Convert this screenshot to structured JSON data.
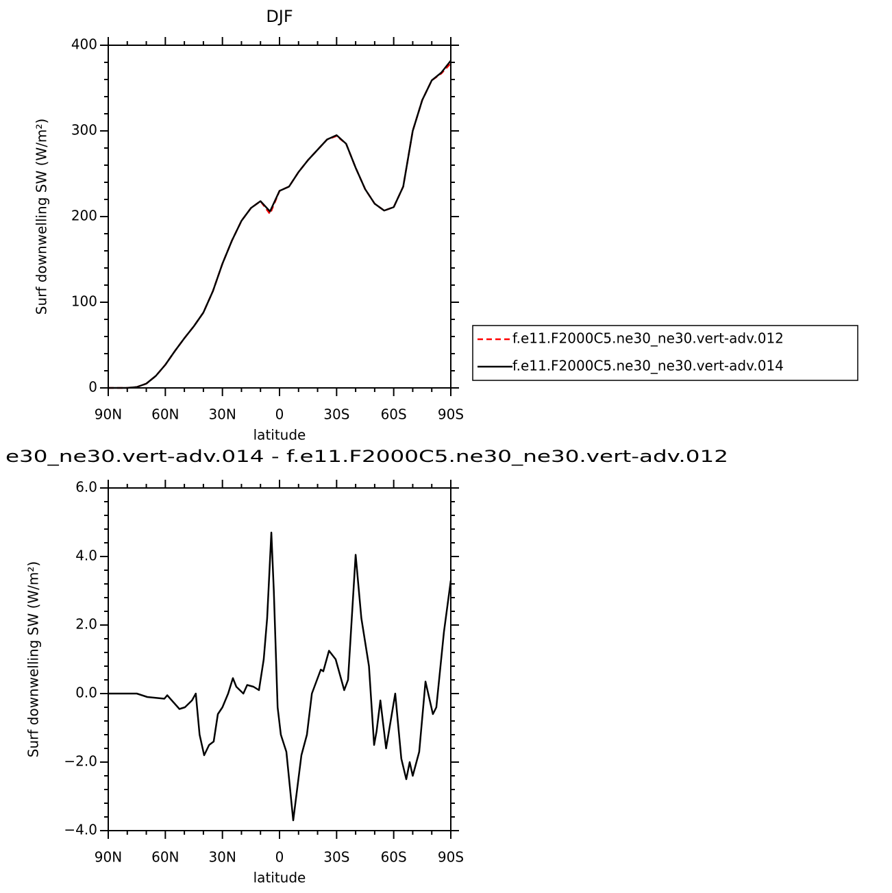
{
  "chart_data": [
    {
      "type": "line",
      "title": "DJF",
      "x_label": "latitude",
      "y_label": "Surf downwelling SW (W/m²)",
      "x": [
        90,
        85,
        80,
        75,
        70,
        65,
        60,
        55,
        50,
        45,
        40,
        35,
        30,
        25,
        20,
        15,
        10,
        5,
        0,
        -5,
        -10,
        -15,
        -20,
        -25,
        -30,
        -35,
        -40,
        -45,
        -50,
        -55,
        -60,
        -65,
        -70,
        -75,
        -80,
        -85,
        -90
      ],
      "series": [
        {
          "name": "f.e11.F2000C5.ne30_ne30.vert-adv.012",
          "color": "#ff0000",
          "dash": true,
          "values": [
            0,
            0,
            0,
            1,
            5,
            14,
            27,
            43,
            58,
            72,
            88,
            113,
            145,
            172,
            195,
            210,
            218,
            203,
            230,
            235,
            252,
            266,
            278,
            290,
            294,
            285,
            257,
            232,
            215,
            207,
            211,
            235,
            300,
            336,
            359,
            367,
            379
          ]
        },
        {
          "name": "f.e11.F2000C5.ne30_ne30.vert-adv.014",
          "color": "#000000",
          "dash": false,
          "values": [
            0,
            0,
            0,
            1,
            5,
            14,
            27,
            43,
            58,
            72,
            88,
            113,
            145,
            172,
            195,
            210,
            218,
            206,
            230,
            235,
            252,
            266,
            278,
            290,
            295,
            285,
            257,
            232,
            215,
            207,
            211,
            235,
            300,
            336,
            359,
            368,
            382
          ]
        }
      ],
      "xlim": [
        90,
        -90
      ],
      "xticks": [
        {
          "value": 90,
          "label": "90N"
        },
        {
          "value": 60,
          "label": "60N"
        },
        {
          "value": 30,
          "label": "30N"
        },
        0,
        {
          "value": -30,
          "label": "30S"
        },
        {
          "value": -60,
          "label": "60S"
        },
        {
          "value": -90,
          "label": "90S"
        }
      ],
      "ylim": [
        0,
        400
      ],
      "yticks": [
        0,
        100,
        200,
        300,
        400
      ],
      "legend": "right"
    },
    {
      "type": "line",
      "title": "e30_ne30.vert-adv.014 - f.e11.F2000C5.ne30_ne30.vert-adv.012",
      "x_label": "latitude",
      "y_label": "Surf downwelling SW (W/m²)",
      "x": [
        90,
        75,
        69.5,
        60.5,
        59,
        55,
        52.6,
        49.7,
        46,
        44,
        42,
        39.6,
        37,
        34.6,
        32.4,
        30,
        27,
        24.5,
        22.7,
        19,
        17,
        13.7,
        10.8,
        8.3,
        6.5,
        4.3,
        3,
        1,
        -0.7,
        -3.6,
        -7.2,
        -11.5,
        -14.4,
        -17,
        -21.7,
        -23,
        -26,
        -29.5,
        -34,
        -36,
        -40,
        -43,
        -47,
        -49.7,
        -51,
        -53,
        -56,
        -60.8,
        -64,
        -66.6,
        -68.4,
        -70,
        -73.4,
        -76.7,
        -80.6,
        -82.4,
        -86.4,
        -90
      ],
      "series": [
        {
          "color": "#000000",
          "dash": false,
          "values": [
            0,
            0,
            -0.1,
            -0.15,
            -0.05,
            -0.3,
            -0.45,
            -0.4,
            -0.2,
            0,
            -1.2,
            -1.8,
            -1.5,
            -1.4,
            -0.6,
            -0.4,
            0,
            0.45,
            0.2,
            0,
            0.25,
            0.2,
            0.1,
            1,
            2.2,
            4.7,
            3,
            -0.4,
            -1.2,
            -1.7,
            -3.7,
            -1.8,
            -1.2,
            0,
            0.7,
            0.65,
            1.25,
            1,
            0.1,
            0.4,
            4.05,
            2.2,
            0.8,
            -1.5,
            -1.1,
            -0.2,
            -1.6,
            0,
            -1.9,
            -2.5,
            -2,
            -2.4,
            -1.7,
            0.35,
            -0.6,
            -0.4,
            1.8,
            3.3
          ]
        }
      ],
      "xlim": [
        90,
        -90
      ],
      "xticks": [
        {
          "value": 90,
          "label": "90N"
        },
        {
          "value": 60,
          "label": "60N"
        },
        {
          "value": 30,
          "label": "30N"
        },
        0,
        {
          "value": -30,
          "label": "30S"
        },
        {
          "value": -60,
          "label": "60S"
        },
        {
          "value": -90,
          "label": "90S"
        }
      ],
      "ylim": [
        -4,
        6
      ],
      "yticks": [
        {
          "value": -4,
          "label": "−4.0"
        },
        {
          "value": -2,
          "label": "−2.0"
        },
        {
          "value": 0,
          "label": "0.0"
        },
        {
          "value": 2,
          "label": "2.0"
        },
        {
          "value": 4,
          "label": "4.0"
        },
        {
          "value": 6,
          "label": "6.0"
        }
      ]
    }
  ]
}
